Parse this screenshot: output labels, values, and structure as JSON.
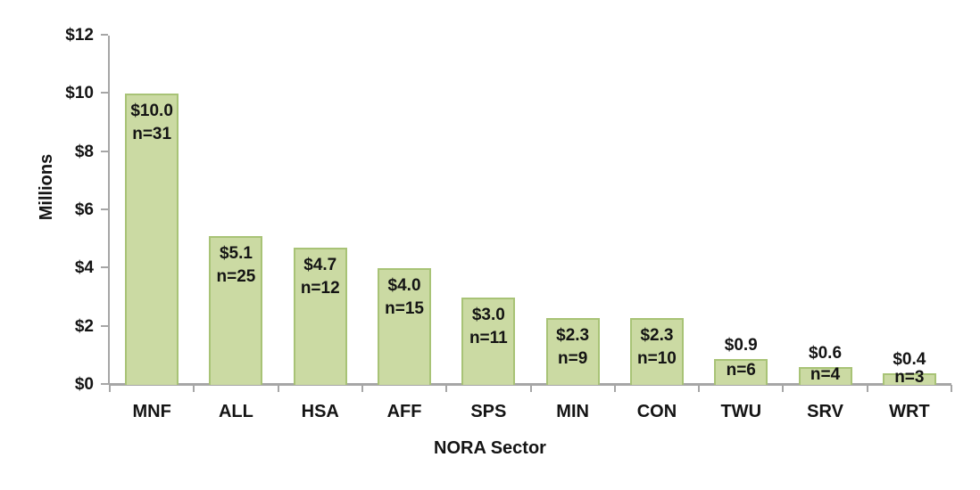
{
  "chart_data": {
    "type": "bar",
    "title": "",
    "xlabel": "NORA Sector",
    "ylabel": "Millions",
    "ylim": [
      0,
      12
    ],
    "ytick_step": 2,
    "ytick_labels": [
      "$0",
      "$2",
      "$4",
      "$6",
      "$8",
      "$10",
      "$12"
    ],
    "categories": [
      "MNF",
      "ALL",
      "HSA",
      "AFF",
      "SPS",
      "MIN",
      "CON",
      "TWU",
      "SRV",
      "WRT"
    ],
    "values": [
      10.0,
      5.1,
      4.7,
      4.0,
      3.0,
      2.3,
      2.3,
      0.9,
      0.6,
      0.4
    ],
    "value_labels": [
      "$10.0",
      "$5.1",
      "$4.7",
      "$4.0",
      "$3.0",
      "$2.3",
      "$2.3",
      "$0.9",
      "$0.6",
      "$0.4"
    ],
    "n_labels": [
      "n=31",
      "n=25",
      "n=12",
      "n=15",
      "n=11",
      "n=9",
      "n=10",
      "n=6",
      "n=4",
      "n=3"
    ],
    "counts": [
      31,
      25,
      12,
      15,
      11,
      9,
      10,
      6,
      4,
      3
    ],
    "colors": {
      "bar_fill": "#cbdaa3",
      "bar_border": "#a8c376",
      "axis": "#a6a6a6",
      "text": "#141414",
      "background": "#ffffff"
    },
    "grid": false,
    "legend": false
  }
}
